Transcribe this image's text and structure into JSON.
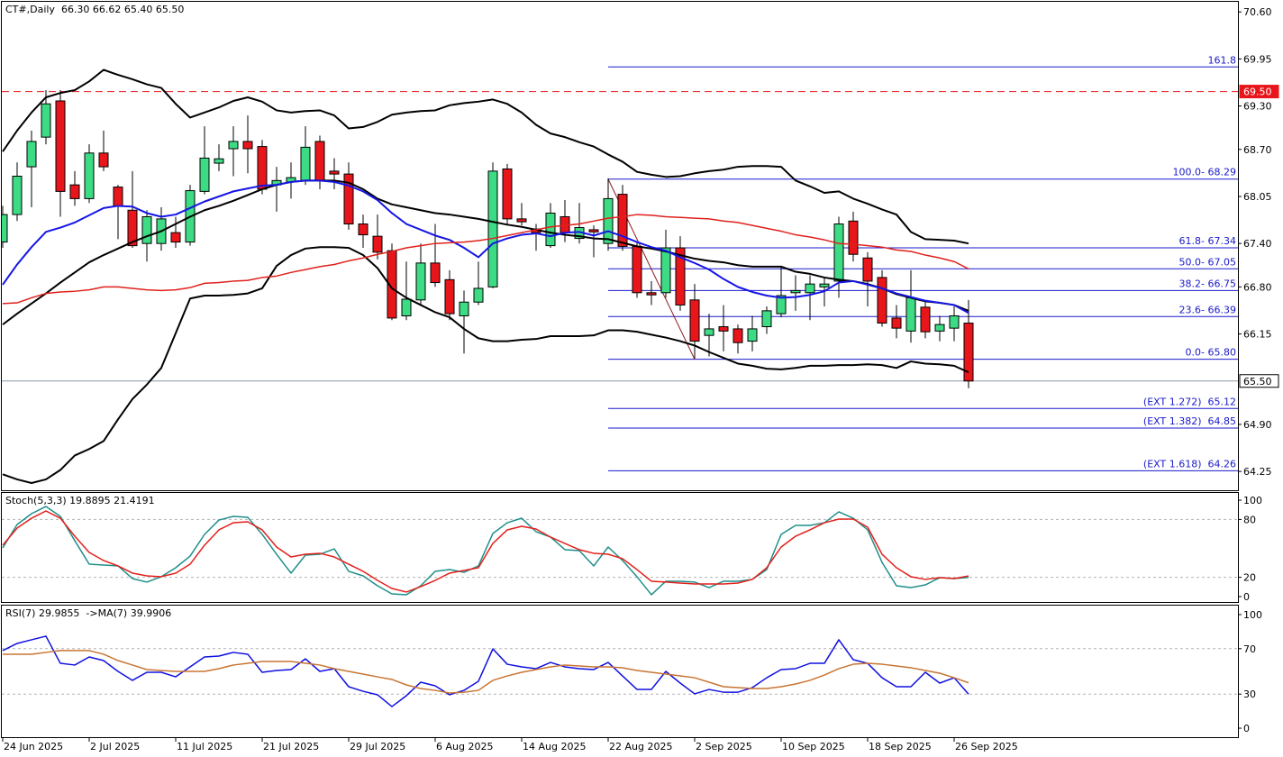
{
  "chart_data": [
    {
      "type": "candlestick",
      "title": "CT#,Daily  66.30 66.62 65.40 65.50",
      "categories": [
        "24 Jun 2025",
        null,
        null,
        null,
        null,
        null,
        "2 Jul 2025",
        null,
        null,
        null,
        null,
        null,
        "11 Jul 2025",
        null,
        null,
        null,
        null,
        null,
        "21 Jul 2025",
        null,
        null,
        null,
        null,
        null,
        "29 Jul 2025",
        null,
        null,
        null,
        null,
        null,
        "6 Aug 2025",
        null,
        null,
        null,
        null,
        null,
        "14 Aug 2025",
        null,
        null,
        null,
        null,
        null,
        "22 Aug 2025",
        null,
        null,
        null,
        null,
        null,
        "2 Sep 2025",
        null,
        null,
        null,
        null,
        null,
        "10 Sep 2025",
        null,
        null,
        null,
        null,
        null,
        "18 Sep 2025",
        null,
        null,
        null,
        null,
        null,
        "26 Sep 2025",
        null
      ],
      "open": [
        67.42,
        67.8,
        68.46,
        68.87,
        69.37,
        68.21,
        68.02,
        68.65,
        68.18,
        67.86,
        67.4,
        67.4,
        67.55,
        67.42,
        68.12,
        68.51,
        68.71,
        68.81,
        68.74,
        68.21,
        68.25,
        68.27,
        68.81,
        68.4,
        68.36,
        67.67,
        67.5,
        67.3,
        66.4,
        66.62,
        67.13,
        66.9,
        66.4,
        66.59,
        66.8,
        68.43,
        67.74,
        67.6,
        67.37,
        67.77,
        67.47,
        67.59,
        67.4,
        68.08,
        67.36,
        66.72,
        66.72,
        67.34,
        66.62,
        66.13,
        66.25,
        66.22,
        66.05,
        66.25,
        66.43,
        66.72,
        66.72,
        66.8,
        66.88,
        67.71,
        67.2,
        66.93,
        66.37,
        66.19,
        66.52,
        66.19,
        66.23,
        66.3
      ],
      "high": [
        67.92,
        68.52,
        68.96,
        69.52,
        69.52,
        68.4,
        68.77,
        68.96,
        68.21,
        68.4,
        67.86,
        67.9,
        67.77,
        68.21,
        69.02,
        68.77,
        69.02,
        69.17,
        68.83,
        68.46,
        68.52,
        69.02,
        68.89,
        68.58,
        68.52,
        67.8,
        67.8,
        67.4,
        67.15,
        67.4,
        67.67,
        67.03,
        66.75,
        67.15,
        68.52,
        68.5,
        67.96,
        67.67,
        67.96,
        68.0,
        67.96,
        67.65,
        68.3,
        68.21,
        67.42,
        66.88,
        67.59,
        67.5,
        66.84,
        66.43,
        66.55,
        66.28,
        66.4,
        66.53,
        67.09,
        66.96,
        66.96,
        66.93,
        67.77,
        67.84,
        67.28,
        67.03,
        66.55,
        67.03,
        66.59,
        66.4,
        66.53,
        66.62
      ],
      "low": [
        67.34,
        67.71,
        67.9,
        68.77,
        67.77,
        67.92,
        67.96,
        68.4,
        67.46,
        67.34,
        67.15,
        67.3,
        67.34,
        67.37,
        68.08,
        68.4,
        68.33,
        68.37,
        68.08,
        67.84,
        68.02,
        68.21,
        68.15,
        68.15,
        67.59,
        67.34,
        67.18,
        66.34,
        66.34,
        66.55,
        66.8,
        66.34,
        65.88,
        66.55,
        66.78,
        67.67,
        67.65,
        67.3,
        67.34,
        67.42,
        67.4,
        67.21,
        67.3,
        67.3,
        66.65,
        66.55,
        66.65,
        66.47,
        65.81,
        65.84,
        65.91,
        65.88,
        65.91,
        66.15,
        66.38,
        66.47,
        66.34,
        66.53,
        66.65,
        67.15,
        66.53,
        66.25,
        66.09,
        66.03,
        66.09,
        66.05,
        66.05,
        65.4
      ],
      "close": [
        67.8,
        68.33,
        68.81,
        69.33,
        68.12,
        68.02,
        68.65,
        68.46,
        67.92,
        67.37,
        67.77,
        67.74,
        67.42,
        68.13,
        68.58,
        68.57,
        68.81,
        68.71,
        68.15,
        68.27,
        68.31,
        68.73,
        68.27,
        68.36,
        67.67,
        67.52,
        67.28,
        66.37,
        66.63,
        67.13,
        66.86,
        66.43,
        66.59,
        66.78,
        68.4,
        67.74,
        67.7,
        67.55,
        67.82,
        67.55,
        67.62,
        67.56,
        68.02,
        67.36,
        66.72,
        66.69,
        67.34,
        66.55,
        66.05,
        66.22,
        66.19,
        66.03,
        66.22,
        66.47,
        66.68,
        66.75,
        66.84,
        66.84,
        67.67,
        67.25,
        66.88,
        66.3,
        66.23,
        66.65,
        66.18,
        66.28,
        66.4,
        65.5
      ],
      "up_color": "#3ddc84",
      "down_color": "#e8161b",
      "series": [
        {
          "color": "#000000",
          "values": [
            68.67,
            68.96,
            69.21,
            69.42,
            69.48,
            69.52,
            69.64,
            69.8,
            69.73,
            69.67,
            69.6,
            69.55,
            69.33,
            69.14,
            69.21,
            69.28,
            69.37,
            69.42,
            69.36,
            69.24,
            69.21,
            69.23,
            69.24,
            69.17,
            68.99,
            69.01,
            69.08,
            69.18,
            69.21,
            69.23,
            69.24,
            69.31,
            69.34,
            69.36,
            69.39,
            69.33,
            69.21,
            69.04,
            68.92,
            68.87,
            68.8,
            68.74,
            68.63,
            68.53,
            68.39,
            68.35,
            68.32,
            68.33,
            68.37,
            68.4,
            68.42,
            68.46,
            68.47,
            68.47,
            68.46,
            68.27,
            68.19,
            68.1,
            68.12,
            68.02,
            67.95,
            67.87,
            67.8,
            67.56,
            67.46,
            67.45,
            67.44,
            67.4
          ]
        },
        {
          "color": "#000000",
          "values": [
            66.28,
            66.43,
            66.57,
            66.71,
            66.86,
            67.0,
            67.14,
            67.24,
            67.33,
            67.42,
            67.5,
            67.57,
            67.67,
            67.77,
            67.86,
            67.92,
            67.99,
            68.07,
            68.15,
            68.21,
            68.25,
            68.27,
            68.27,
            68.27,
            68.24,
            68.15,
            68.02,
            67.94,
            67.9,
            67.86,
            67.82,
            67.8,
            67.77,
            67.74,
            67.7,
            67.66,
            67.63,
            67.59,
            67.55,
            67.52,
            67.5,
            67.47,
            67.46,
            67.41,
            67.36,
            67.33,
            67.29,
            67.24,
            67.19,
            67.16,
            67.14,
            67.1,
            67.08,
            67.08,
            67.08,
            67.01,
            66.98,
            66.93,
            66.9,
            66.88,
            66.84,
            66.78,
            66.7,
            66.65,
            66.6,
            66.58,
            66.55,
            66.47
          ]
        },
        {
          "color": "#000000",
          "values": [
            64.21,
            64.14,
            64.09,
            64.14,
            64.27,
            64.47,
            64.56,
            64.67,
            64.97,
            65.25,
            65.45,
            65.68,
            66.16,
            66.64,
            66.68,
            66.68,
            66.69,
            66.71,
            66.78,
            67.09,
            67.24,
            67.33,
            67.35,
            67.35,
            67.34,
            67.24,
            67.06,
            66.78,
            66.65,
            66.55,
            66.45,
            66.38,
            66.22,
            66.09,
            66.05,
            66.05,
            66.07,
            66.08,
            66.12,
            66.12,
            66.12,
            66.13,
            66.2,
            66.2,
            66.18,
            66.14,
            66.1,
            66.05,
            65.99,
            65.9,
            65.82,
            65.74,
            65.71,
            65.67,
            65.66,
            65.68,
            65.71,
            65.71,
            65.72,
            65.72,
            65.73,
            65.72,
            65.68,
            65.77,
            65.74,
            65.73,
            65.71,
            65.62
          ]
        },
        {
          "color": "#1515e6",
          "values": [
            66.83,
            67.11,
            67.35,
            67.56,
            67.62,
            67.69,
            67.79,
            67.89,
            67.92,
            67.91,
            67.82,
            67.77,
            67.8,
            67.89,
            67.98,
            68.05,
            68.12,
            68.16,
            68.2,
            68.21,
            68.25,
            68.27,
            68.27,
            68.25,
            68.2,
            68.12,
            68.0,
            67.82,
            67.67,
            67.59,
            67.51,
            67.45,
            67.34,
            67.21,
            67.4,
            67.47,
            67.52,
            67.54,
            67.5,
            67.55,
            67.56,
            67.51,
            67.57,
            67.5,
            67.42,
            67.35,
            67.3,
            67.21,
            67.13,
            67.04,
            66.91,
            66.8,
            66.73,
            66.68,
            66.65,
            66.66,
            66.69,
            66.74,
            66.86,
            66.88,
            66.83,
            66.78,
            66.71,
            66.66,
            66.61,
            66.58,
            66.55,
            66.44
          ]
        },
        {
          "color": "#e0201b",
          "values": [
            66.57,
            66.58,
            66.65,
            66.71,
            66.73,
            66.74,
            66.76,
            66.8,
            66.8,
            66.78,
            66.76,
            66.75,
            66.76,
            66.79,
            66.85,
            66.86,
            66.88,
            66.89,
            66.93,
            66.95,
            67.0,
            67.04,
            67.08,
            67.11,
            67.16,
            67.2,
            67.25,
            67.29,
            67.34,
            67.37,
            67.4,
            67.41,
            67.42,
            67.44,
            67.47,
            67.51,
            67.55,
            67.59,
            67.63,
            67.65,
            67.67,
            67.71,
            67.75,
            67.77,
            67.8,
            67.79,
            67.77,
            67.76,
            67.75,
            67.74,
            67.71,
            67.69,
            67.65,
            67.61,
            67.57,
            67.52,
            67.49,
            67.45,
            67.4,
            67.39,
            67.37,
            67.35,
            67.31,
            67.29,
            67.24,
            67.2,
            67.15,
            67.05
          ]
        }
      ],
      "ylim": [
        63.99,
        70.74
      ],
      "yticks": [
        {
          "value": 70.6,
          "label": "70.60"
        },
        69.95,
        {
          "value": 69.3,
          "label": "69.30"
        },
        {
          "value": 68.7,
          "label": "68.70"
        },
        68.05,
        {
          "value": 67.4,
          "label": "67.40"
        },
        {
          "value": 66.8,
          "label": "66.80"
        },
        66.15,
        {
          "value": 64.9,
          "label": "64.90"
        },
        64.25
      ],
      "price_lines": [
        {
          "value": 69.5,
          "label": "69.50",
          "color": "#e8161b",
          "style": "dashed"
        },
        {
          "value": 65.5,
          "label": "65.50",
          "color": "#8a98a8",
          "style": "solid"
        }
      ],
      "fib_color": "#1a1acc",
      "fib_levels": [
        {
          "value": 69.84,
          "label": "161.8"
        },
        {
          "value": 68.29,
          "label": "100.0- 68.29"
        },
        {
          "value": 67.34,
          "label": "61.8- 67.34"
        },
        {
          "value": 67.05,
          "label": "50.0- 67.05"
        },
        {
          "value": 66.75,
          "label": "38.2- 66.75"
        },
        {
          "value": 66.39,
          "label": "23.6- 66.39"
        },
        {
          "value": 65.8,
          "label": "0.0- 65.80"
        },
        {
          "value": 65.12,
          "label": "(EXT 1.272)  65.12"
        },
        {
          "value": 64.85,
          "label": "(EXT 1.382)  64.85"
        },
        {
          "value": 64.26,
          "label": "(EXT 1.618)  64.26"
        }
      ],
      "trendline": {
        "x": [
          42,
          48
        ],
        "y": [
          68.29,
          65.8
        ],
        "color": "#8b1a1a"
      }
    },
    {
      "type": "line",
      "title": "Stoch(5,3,3) 19.8895 21.4191",
      "series": [
        {
          "color": "#1f8f8a",
          "values": [
            50.5,
            74.8,
            86,
            93.5,
            83.2,
            58,
            33.6,
            32.7,
            31.8,
            18.7,
            15,
            20.6,
            29.9,
            42,
            64.5,
            79.4,
            83.2,
            82.2,
            64.5,
            43.9,
            24.3,
            43,
            43.9,
            49.5,
            26.2,
            21.5,
            11.2,
            2.8,
            1.9,
            11.2,
            26.2,
            28,
            25.2,
            31.8,
            65.4,
            76.6,
            81.3,
            67.3,
            61.7,
            48.6,
            47.7,
            31.8,
            51.4,
            37.4,
            20.6,
            1.9,
            15.9,
            15.9,
            15,
            9.3,
            15.9,
            15.9,
            17.8,
            28,
            64.5,
            73.8,
            73.8,
            76.6,
            87.9,
            81.3,
            69.2,
            35.5,
            11.2,
            9.3,
            12.1,
            19.6,
            18.7,
            19.8895
          ]
        },
        {
          "color": "#e3201b",
          "values": [
            53.3,
            71,
            81.3,
            88.8,
            81.3,
            62.6,
            45.8,
            37.4,
            31.8,
            24.3,
            21.5,
            20.6,
            24.3,
            33.6,
            53.3,
            69.2,
            76.6,
            77.6,
            69.2,
            51.4,
            41.1,
            43.9,
            44.9,
            41.1,
            33.6,
            26.2,
            16.8,
            8.4,
            4.7,
            10.3,
            16.8,
            24.3,
            27.1,
            29.9,
            55.1,
            69.2,
            72.9,
            70.1,
            61.7,
            55.1,
            48.6,
            44.9,
            43.9,
            39.3,
            28,
            15.9,
            15,
            14,
            13.1,
            13.1,
            13.1,
            14,
            17.8,
            29.9,
            51.4,
            62.6,
            69.2,
            76.6,
            80.4,
            80.4,
            72,
            43.9,
            29.9,
            20.6,
            17.8,
            19.6,
            18.7,
            21.4191
          ]
        }
      ],
      "ylim": [
        -4.7,
        107.5
      ],
      "yticks": [
        0,
        20,
        80,
        100
      ],
      "levels": [
        20,
        80
      ]
    },
    {
      "type": "line",
      "title": "RSI(7) 29.9855  ->MA(7) 39.9906",
      "series": [
        {
          "color": "#1010e0",
          "values": [
            68.3,
            74.6,
            77.8,
            81,
            57.1,
            55.6,
            62.7,
            59.5,
            50,
            42.1,
            49.2,
            49.2,
            45.2,
            54,
            62.7,
            63.5,
            66.7,
            65.1,
            49.2,
            50.8,
            51.6,
            61.1,
            50,
            52.4,
            36.5,
            32.5,
            29.4,
            19,
            28.6,
            40.5,
            37.3,
            29.4,
            33.3,
            41.3,
            69.8,
            56.3,
            54,
            52.4,
            57.9,
            54,
            52.4,
            51.6,
            57.9,
            46,
            34.1,
            34.1,
            50,
            39.7,
            30.2,
            34.1,
            31.7,
            31.7,
            35.7,
            44.4,
            51.6,
            52.4,
            57.1,
            57.1,
            77.8,
            60.3,
            57.1,
            44.4,
            36.5,
            36.5,
            49.2,
            39.7,
            44.4,
            29.9855
          ]
        },
        {
          "color": "#c87533",
          "values": [
            65.1,
            65.1,
            65.1,
            66.7,
            68.3,
            68.3,
            68.3,
            65.1,
            59.5,
            55.6,
            51.6,
            50.8,
            50,
            50,
            50,
            52.4,
            55.6,
            57.1,
            58.7,
            58.7,
            58.7,
            57.1,
            55.6,
            52.4,
            50,
            47.6,
            45.2,
            42.9,
            38.1,
            34.9,
            33.3,
            31,
            31.7,
            33.3,
            42.1,
            46,
            49.2,
            51.6,
            54,
            55.6,
            54.8,
            54,
            54,
            53.2,
            50.8,
            49.2,
            47.6,
            46,
            44.4,
            40.5,
            36.5,
            35.7,
            34.9,
            34.9,
            36.5,
            38.9,
            42.1,
            46.8,
            52.4,
            56.3,
            57.1,
            56.3,
            54.8,
            53.2,
            50.8,
            48.4,
            44.4,
            39.9906
          ]
        }
      ],
      "ylim": [
        -7.9,
        107.9
      ],
      "yticks": [
        0,
        30,
        70,
        100
      ],
      "levels": [
        30,
        70
      ]
    }
  ]
}
